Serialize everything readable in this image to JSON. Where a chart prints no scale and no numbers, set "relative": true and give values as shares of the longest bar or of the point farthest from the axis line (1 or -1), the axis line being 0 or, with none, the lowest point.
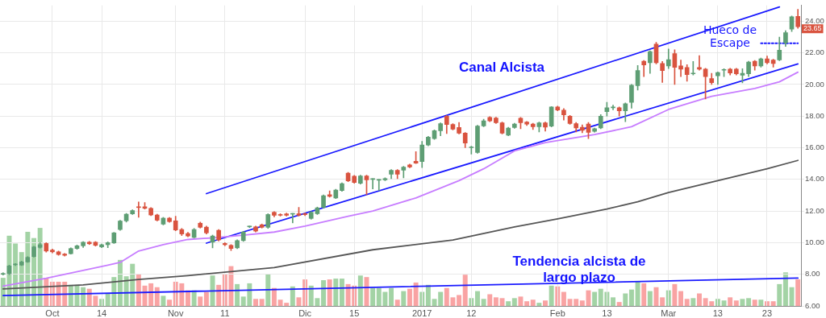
{
  "chart_data": [
    {
      "type": "candlestick",
      "categories": [
        null,
        null,
        null,
        null,
        null,
        null,
        null,
        null,
        "Oct",
        null,
        null,
        null,
        null,
        null,
        null,
        null,
        "14",
        null,
        null,
        null,
        null,
        null,
        null,
        null,
        null,
        null,
        null,
        null,
        "Nov",
        null,
        null,
        null,
        null,
        null,
        null,
        null,
        "11",
        null,
        null,
        null,
        null,
        null,
        null,
        null,
        null,
        null,
        null,
        null,
        null,
        "Dic",
        null,
        null,
        null,
        null,
        null,
        null,
        null,
        "15",
        null,
        null,
        null,
        null,
        null,
        null,
        null,
        null,
        null,
        null,
        "2017",
        null,
        null,
        null,
        null,
        null,
        null,
        null,
        "12",
        null,
        null,
        null,
        null,
        null,
        null,
        null,
        null,
        null,
        null,
        null,
        null,
        null,
        "Feb",
        null,
        null,
        null,
        null,
        null,
        null,
        null,
        "13",
        null,
        null,
        null,
        null,
        null,
        null,
        null,
        null,
        null,
        "Mar",
        null,
        null,
        null,
        null,
        null,
        null,
        null,
        "13",
        null,
        null,
        null,
        null,
        null,
        null,
        null,
        "23",
        null,
        null,
        null,
        null,
        null
      ],
      "ohlc": [
        [
          8.0,
          8.1,
          7.95,
          8.05
        ],
        [
          8.03,
          8.58,
          7.98,
          8.53
        ],
        [
          8.6,
          8.68,
          8.55,
          8.65
        ],
        [
          8.58,
          8.83,
          8.55,
          8.78
        ],
        [
          8.78,
          9.12,
          8.75,
          9.07
        ],
        [
          9.12,
          9.78,
          9.08,
          9.73
        ],
        [
          9.7,
          10.0,
          9.65,
          9.87
        ],
        [
          9.95,
          10.0,
          9.4,
          9.47
        ],
        [
          9.53,
          9.6,
          9.35,
          9.42
        ],
        [
          9.42,
          9.47,
          9.2,
          9.25
        ],
        [
          9.28,
          9.32,
          9.15,
          9.2
        ],
        [
          9.3,
          9.67,
          9.27,
          9.63
        ],
        [
          9.63,
          9.85,
          9.58,
          9.8
        ],
        [
          9.8,
          10.07,
          9.7,
          10.03
        ],
        [
          10.03,
          10.08,
          9.88,
          9.93
        ],
        [
          10.03,
          10.07,
          9.78,
          9.83
        ],
        [
          9.73,
          9.92,
          9.68,
          9.87
        ],
        [
          9.87,
          10.05,
          9.68,
          10.0
        ],
        [
          9.98,
          10.65,
          9.95,
          10.62
        ],
        [
          10.83,
          11.42,
          10.78,
          11.37
        ],
        [
          11.38,
          11.85,
          11.3,
          11.8
        ],
        [
          11.82,
          12.08,
          11.78,
          12.03
        ],
        [
          12.27,
          12.58,
          11.6,
          12.22
        ],
        [
          12.27,
          12.53,
          12.12,
          12.17
        ],
        [
          12.17,
          12.22,
          11.7,
          11.75
        ],
        [
          11.75,
          11.8,
          11.37,
          11.42
        ],
        [
          11.17,
          11.6,
          11.12,
          11.55
        ],
        [
          11.55,
          11.6,
          11.28,
          11.33
        ],
        [
          11.38,
          11.67,
          10.75,
          10.8
        ],
        [
          10.83,
          10.9,
          10.45,
          10.55
        ],
        [
          10.58,
          10.65,
          10.37,
          10.42
        ],
        [
          10.33,
          10.9,
          10.3,
          10.83
        ],
        [
          11.23,
          11.3,
          10.92,
          10.97
        ],
        [
          10.98,
          11.05,
          10.55,
          10.62
        ],
        [
          10.03,
          10.48,
          9.67,
          10.42
        ],
        [
          10.78,
          10.83,
          10.1,
          10.17
        ],
        [
          9.95,
          10.0,
          9.8,
          9.87
        ],
        [
          9.83,
          9.88,
          9.5,
          9.63
        ],
        [
          9.67,
          10.18,
          9.62,
          10.13
        ],
        [
          10.13,
          10.72,
          10.08,
          10.67
        ],
        [
          11.0,
          11.05,
          10.95,
          11.02
        ],
        [
          11.0,
          11.05,
          10.68,
          10.73
        ],
        [
          11.13,
          11.18,
          10.92,
          10.97
        ],
        [
          10.97,
          11.83,
          10.9,
          11.78
        ],
        [
          11.92,
          11.97,
          11.63,
          11.73
        ],
        [
          11.78,
          11.83,
          11.68,
          11.73
        ],
        [
          11.82,
          11.87,
          11.68,
          11.73
        ],
        [
          11.8,
          11.85,
          11.25,
          11.82
        ],
        [
          11.83,
          12.23,
          11.68,
          11.73
        ],
        [
          11.83,
          11.88,
          11.7,
          11.77
        ],
        [
          11.53,
          11.97,
          11.48,
          11.92
        ],
        [
          11.83,
          12.25,
          11.78,
          12.2
        ],
        [
          12.23,
          13.02,
          12.18,
          12.97
        ],
        [
          13.03,
          13.27,
          12.87,
          12.92
        ],
        [
          12.83,
          13.38,
          12.78,
          13.33
        ],
        [
          13.3,
          13.78,
          13.25,
          13.73
        ],
        [
          14.4,
          14.45,
          13.85,
          13.9
        ],
        [
          14.2,
          14.25,
          13.75,
          13.8
        ],
        [
          13.75,
          14.27,
          13.7,
          14.22
        ],
        [
          14.22,
          14.27,
          13.03,
          13.97
        ],
        [
          14.0,
          14.05,
          13.4,
          14.02
        ],
        [
          13.95,
          14.0,
          13.3,
          13.97
        ],
        [
          13.97,
          14.1,
          13.92,
          14.05
        ],
        [
          14.33,
          14.62,
          14.05,
          14.57
        ],
        [
          14.57,
          14.62,
          14.05,
          14.33
        ],
        [
          14.58,
          14.83,
          14.1,
          14.78
        ],
        [
          14.92,
          14.97,
          14.73,
          14.78
        ],
        [
          15.15,
          15.75,
          15.0,
          15.03
        ],
        [
          15.13,
          16.4,
          14.75,
          16.17
        ],
        [
          16.17,
          16.72,
          16.12,
          16.67
        ],
        [
          16.58,
          17.13,
          16.53,
          17.08
        ],
        [
          17.07,
          17.58,
          16.75,
          17.53
        ],
        [
          18.0,
          18.05,
          16.9,
          17.47
        ],
        [
          17.47,
          17.52,
          17.12,
          17.17
        ],
        [
          17.28,
          17.6,
          16.87,
          16.92
        ],
        [
          16.92,
          16.97,
          16.0,
          16.3
        ],
        [
          16.0,
          16.1,
          15.6,
          16.02
        ],
        [
          15.7,
          17.42,
          15.65,
          17.37
        ],
        [
          17.38,
          17.8,
          17.33,
          17.7
        ],
        [
          17.92,
          17.97,
          17.65,
          17.7
        ],
        [
          17.88,
          17.93,
          17.53,
          17.58
        ],
        [
          17.57,
          17.62,
          16.87,
          16.92
        ],
        [
          16.8,
          17.3,
          16.75,
          17.25
        ],
        [
          17.28,
          17.55,
          17.23,
          17.5
        ],
        [
          17.87,
          17.92,
          17.2,
          17.58
        ],
        [
          17.62,
          17.67,
          17.4,
          17.5
        ],
        [
          17.5,
          17.55,
          17.15,
          17.33
        ],
        [
          17.33,
          17.63,
          17.0,
          17.58
        ],
        [
          17.58,
          17.63,
          17.05,
          17.3
        ],
        [
          17.37,
          18.6,
          17.32,
          18.58
        ],
        [
          18.58,
          18.63,
          18.33,
          18.38
        ],
        [
          18.38,
          18.48,
          17.75,
          18.08
        ],
        [
          18.0,
          18.05,
          17.48,
          17.53
        ],
        [
          17.53,
          17.6,
          17.0,
          17.25
        ],
        [
          17.3,
          17.45,
          16.95,
          17.1
        ],
        [
          17.5,
          17.6,
          16.58,
          16.97
        ],
        [
          17.03,
          17.25,
          16.98,
          17.2
        ],
        [
          17.25,
          18.1,
          17.2,
          18.0
        ],
        [
          18.28,
          18.87,
          18.0,
          18.53
        ],
        [
          18.53,
          18.7,
          18.4,
          18.55
        ],
        [
          18.53,
          18.58,
          18.0,
          18.33
        ],
        [
          18.33,
          18.83,
          17.65,
          18.78
        ],
        [
          18.87,
          20.0,
          18.5,
          19.95
        ],
        [
          19.92,
          21.2,
          19.65,
          20.88
        ],
        [
          21.47,
          21.52,
          20.5,
          21.23
        ],
        [
          21.37,
          22.13,
          20.7,
          22.08
        ],
        [
          22.55,
          22.67,
          21.3,
          21.38
        ],
        [
          21.33,
          21.45,
          20.13,
          20.88
        ],
        [
          21.17,
          22.25,
          21.0,
          21.57
        ],
        [
          21.95,
          22.2,
          20.0,
          21.08
        ],
        [
          21.17,
          21.55,
          20.5,
          20.97
        ],
        [
          21.08,
          21.25,
          20.2,
          20.63
        ],
        [
          20.67,
          21.45,
          20.6,
          20.68
        ],
        [
          21.08,
          21.83,
          20.9,
          20.97
        ],
        [
          20.97,
          21.02,
          19.08,
          20.5
        ],
        [
          20.37,
          20.7,
          20.0,
          20.12
        ],
        [
          20.55,
          20.8,
          20.0,
          20.75
        ],
        [
          20.9,
          21.0,
          20.5,
          20.95
        ],
        [
          20.97,
          21.02,
          20.6,
          20.72
        ],
        [
          20.97,
          21.02,
          20.6,
          20.67
        ],
        [
          20.58,
          21.0,
          20.1,
          20.7
        ],
        [
          20.67,
          21.47,
          20.5,
          21.42
        ],
        [
          21.47,
          21.52,
          20.9,
          21.17
        ],
        [
          21.17,
          21.67,
          21.1,
          21.62
        ],
        [
          21.62,
          21.8,
          21.3,
          21.37
        ],
        [
          21.55,
          21.6,
          21.1,
          21.33
        ],
        [
          21.55,
          23.0,
          21.5,
          22.17
        ],
        [
          22.62,
          23.4,
          22.4,
          23.28
        ],
        [
          23.5,
          24.33,
          23.35,
          24.28
        ],
        [
          24.3,
          24.75,
          23.55,
          23.65
        ]
      ],
      "colors": [
        "#5e9e74",
        "#5e9e74",
        "#5e9e74",
        "#5e9e74",
        "#5e9e74",
        "#5e9e74",
        "#5e9e74",
        "#d9533f",
        "#d9533f",
        "#d9533f",
        "#d9533f",
        "#5e9e74",
        "#5e9e74",
        "#5e9e74",
        "#d9533f",
        "#d9533f",
        "#5e9e74",
        "#5e9e74",
        "#5e9e74",
        "#5e9e74",
        "#5e9e74",
        "#5e9e74",
        "#d9533f",
        "#d9533f",
        "#d9533f",
        "#d9533f",
        "#5e9e74",
        "#d9533f",
        "#d9533f",
        "#d9533f",
        "#d9533f",
        "#5e9e74",
        "#d9533f",
        "#d9533f",
        "#5e9e74",
        "#d9533f",
        "#d9533f",
        "#d9533f",
        "#5e9e74",
        "#5e9e74",
        "#5e9e74",
        "#d9533f",
        "#d9533f",
        "#5e9e74",
        "#d9533f",
        "#d9533f",
        "#d9533f",
        "#5e9e74",
        "#d9533f",
        "#d9533f",
        "#5e9e74",
        "#5e9e74",
        "#5e9e74",
        "#d9533f",
        "#5e9e74",
        "#5e9e74",
        "#d9533f",
        "#d9533f",
        "#5e9e74",
        "#d9533f",
        "#5e9e74",
        "#5e9e74",
        "#5e9e74",
        "#5e9e74",
        "#d9533f",
        "#5e9e74",
        "#d9533f",
        "#d9533f",
        "#5e9e74",
        "#5e9e74",
        "#5e9e74",
        "#5e9e74",
        "#d9533f",
        "#d9533f",
        "#d9533f",
        "#d9533f",
        "#5e9e74",
        "#5e9e74",
        "#5e9e74",
        "#d9533f",
        "#d9533f",
        "#d9533f",
        "#5e9e74",
        "#5e9e74",
        "#d9533f",
        "#d9533f",
        "#d9533f",
        "#5e9e74",
        "#d9533f",
        "#5e9e74",
        "#d9533f",
        "#d9533f",
        "#d9533f",
        "#d9533f",
        "#d9533f",
        "#d9533f",
        "#5e9e74",
        "#5e9e74",
        "#5e9e74",
        "#5e9e74",
        "#d9533f",
        "#5e9e74",
        "#5e9e74",
        "#5e9e74",
        "#d9533f",
        "#5e9e74",
        "#d9533f",
        "#d9533f",
        "#5e9e74",
        "#d9533f",
        "#d9533f",
        "#d9533f",
        "#5e9e74",
        "#d9533f",
        "#d9533f",
        "#d9533f",
        "#5e9e74",
        "#5e9e74",
        "#d9533f",
        "#d9533f",
        "#5e9e74",
        "#5e9e74",
        "#d9533f",
        "#5e9e74",
        "#d9533f",
        "#d9533f",
        "#5e9e74",
        "#5e9e74",
        "#5e9e74",
        "#d9533f"
      ],
      "series": [
        {
          "type": "line",
          "color": "#c77dff",
          "values": [
            7.25,
            null,
            null,
            null,
            null,
            null,
            null,
            7.75,
            null,
            null,
            null,
            null,
            null,
            null,
            null,
            null,
            null,
            8.58,
            null,
            8.75,
            null,
            null,
            9.47,
            null,
            null,
            null,
            9.87,
            null,
            null,
            null,
            10.2,
            null,
            null,
            null,
            null,
            10.33,
            null,
            null,
            null,
            10.47,
            null,
            null,
            null,
            null,
            10.67,
            null,
            null,
            null,
            null,
            11.05,
            null,
            null,
            null,
            null,
            null,
            null,
            11.67,
            null,
            null,
            null,
            12.0,
            null,
            null,
            null,
            null,
            null,
            null,
            12.83,
            null,
            null,
            null,
            null,
            null,
            null,
            13.92,
            null,
            null,
            null,
            14.67,
            null,
            null,
            null,
            null,
            15.8,
            null,
            null,
            null,
            null,
            16.33,
            null,
            null,
            null,
            null,
            null,
            null,
            null,
            16.83,
            null,
            null,
            null,
            null,
            null,
            17.33,
            null,
            null,
            null,
            null,
            null,
            18.42,
            null,
            null,
            null,
            null,
            null,
            null,
            19.25,
            null,
            null,
            null,
            null,
            null,
            null,
            19.75,
            null,
            null,
            null,
            20.17,
            null,
            null,
            20.78
          ]
        },
        {
          "type": "line",
          "color": "#555555",
          "values": [
            7.08,
            null,
            null,
            null,
            null,
            null,
            null,
            null,
            null,
            null,
            null,
            null,
            null,
            7.33,
            null,
            null,
            null,
            null,
            null,
            null,
            null,
            null,
            7.67,
            null,
            null,
            null,
            null,
            null,
            null,
            null,
            7.92,
            null,
            null,
            null,
            null,
            null,
            null,
            null,
            null,
            null,
            null,
            null,
            null,
            null,
            8.42,
            null,
            null,
            null,
            null,
            null,
            null,
            null,
            null,
            null,
            null,
            null,
            null,
            null,
            null,
            null,
            9.55,
            null,
            null,
            null,
            null,
            null,
            null,
            null,
            null,
            null,
            null,
            null,
            null,
            10.17,
            null,
            null,
            null,
            null,
            null,
            null,
            null,
            null,
            null,
            11.0,
            null,
            null,
            null,
            null,
            null,
            null,
            11.5,
            null,
            null,
            null,
            null,
            null,
            null,
            null,
            12.13,
            null,
            null,
            null,
            null,
            12.58,
            null,
            null,
            null,
            null,
            13.17,
            null,
            null,
            null,
            null,
            null,
            null,
            null,
            13.92,
            null,
            null,
            null,
            null,
            null,
            null,
            null,
            14.67,
            null,
            null,
            null,
            null,
            15.2
          ]
        },
        {
          "type": "line",
          "color": "#1a1aff",
          "values": [
            null,
            null,
            null,
            null,
            null,
            null,
            null,
            null,
            null,
            null,
            null,
            null,
            null,
            null,
            null,
            null,
            null,
            null,
            null,
            null,
            null,
            null,
            null,
            null,
            null,
            null,
            null,
            null,
            null,
            null,
            null,
            null,
            null,
            13.1,
            null,
            null,
            null,
            null,
            null,
            null,
            null,
            null,
            null,
            null,
            null,
            null,
            null,
            null,
            null,
            null,
            null,
            null,
            null,
            null,
            null,
            null,
            null,
            null,
            null,
            null,
            null,
            null,
            null,
            null,
            null,
            null,
            null,
            null,
            null,
            null,
            null,
            null,
            null,
            null,
            null,
            null,
            null,
            null,
            null,
            null,
            null,
            null,
            null,
            null,
            null,
            null,
            null,
            null,
            null,
            null,
            null,
            null,
            null,
            null,
            null,
            null,
            null,
            null,
            null,
            null,
            null,
            null,
            null,
            null,
            null,
            null,
            null,
            null,
            null,
            null,
            null,
            null,
            null,
            null,
            null,
            null,
            null,
            null,
            null,
            null,
            null,
            null,
            null,
            null,
            null,
            null,
            24.9,
            null,
            null,
            null
          ]
        },
        {
          "type": "line",
          "color": "#1a1aff",
          "values": [
            null,
            null,
            null,
            null,
            null,
            null,
            null,
            null,
            null,
            null,
            null,
            null,
            null,
            null,
            null,
            null,
            null,
            null,
            null,
            null,
            null,
            null,
            null,
            null,
            null,
            null,
            null,
            null,
            null,
            null,
            null,
            null,
            null,
            9.97,
            null,
            null,
            null,
            null,
            null,
            null,
            null,
            null,
            null,
            null,
            null,
            null,
            null,
            null,
            null,
            null,
            null,
            null,
            null,
            null,
            null,
            null,
            null,
            null,
            null,
            null,
            null,
            null,
            null,
            null,
            null,
            null,
            null,
            null,
            null,
            null,
            null,
            null,
            null,
            null,
            null,
            null,
            null,
            null,
            null,
            null,
            null,
            null,
            null,
            null,
            null,
            null,
            null,
            null,
            null,
            null,
            null,
            null,
            null,
            null,
            null,
            null,
            null,
            null,
            null,
            null,
            null,
            null,
            null,
            null,
            null,
            null,
            null,
            null,
            null,
            null,
            null,
            null,
            null,
            null,
            null,
            null,
            null,
            null,
            null,
            null,
            null,
            null,
            null,
            null,
            null,
            null,
            null,
            null,
            null,
            21.3
          ]
        },
        {
          "type": "line",
          "color": "#1a1aff",
          "values": [
            6.66,
            null,
            null,
            null,
            null,
            null,
            null,
            null,
            null,
            null,
            null,
            null,
            null,
            null,
            null,
            null,
            null,
            null,
            null,
            null,
            null,
            null,
            null,
            null,
            null,
            null,
            null,
            null,
            null,
            null,
            null,
            null,
            null,
            null,
            null,
            null,
            null,
            null,
            null,
            null,
            null,
            null,
            null,
            null,
            null,
            null,
            null,
            null,
            null,
            null,
            null,
            null,
            null,
            null,
            null,
            null,
            null,
            null,
            null,
            null,
            null,
            null,
            null,
            null,
            null,
            null,
            null,
            null,
            null,
            null,
            null,
            null,
            null,
            null,
            null,
            null,
            null,
            null,
            null,
            null,
            null,
            null,
            null,
            null,
            null,
            null,
            null,
            null,
            null,
            null,
            null,
            null,
            null,
            null,
            null,
            null,
            null,
            null,
            null,
            null,
            null,
            null,
            null,
            null,
            null,
            null,
            null,
            null,
            null,
            null,
            null,
            null,
            null,
            null,
            null,
            null,
            null,
            null,
            null,
            null,
            null,
            null,
            null,
            null,
            null,
            null,
            null,
            null,
            null,
            7.76
          ]
        },
        {
          "type": "line",
          "color": "#1a1aff",
          "line_style": "dotted",
          "values": [
            null,
            null,
            null,
            null,
            null,
            null,
            null,
            null,
            null,
            null,
            null,
            null,
            null,
            null,
            null,
            null,
            null,
            null,
            null,
            null,
            null,
            null,
            null,
            null,
            null,
            null,
            null,
            null,
            null,
            null,
            null,
            null,
            null,
            null,
            null,
            null,
            null,
            null,
            null,
            null,
            null,
            null,
            null,
            null,
            null,
            null,
            null,
            null,
            null,
            null,
            null,
            null,
            null,
            null,
            null,
            null,
            null,
            null,
            null,
            null,
            null,
            null,
            null,
            null,
            null,
            null,
            null,
            null,
            null,
            null,
            null,
            null,
            null,
            null,
            null,
            null,
            null,
            null,
            null,
            null,
            null,
            null,
            null,
            null,
            null,
            null,
            null,
            null,
            null,
            null,
            null,
            null,
            null,
            null,
            null,
            null,
            null,
            null,
            null,
            null,
            null,
            null,
            null,
            null,
            null,
            null,
            null,
            null,
            null,
            null,
            null,
            null,
            null,
            null,
            null,
            null,
            null,
            null,
            null,
            null,
            null,
            null,
            null,
            22.6,
            null,
            null,
            null,
            null,
            null,
            22.6
          ]
        }
      ],
      "ylim": [
        6,
        25
      ],
      "yticks": [
        {
          "value": 6,
          "label": "6.00"
        },
        {
          "value": 8,
          "label": "8.00"
        },
        {
          "value": 10,
          "label": "10.00"
        },
        {
          "value": 12,
          "label": "12.00"
        },
        {
          "value": 14,
          "label": "14.00"
        },
        {
          "value": 16,
          "label": "16.00"
        },
        {
          "value": 18,
          "label": "18.00"
        },
        {
          "value": 20,
          "label": "20.00"
        },
        {
          "value": 22,
          "label": "22.00"
        },
        {
          "value": 24,
          "label": "24.00"
        }
      ],
      "grid": true,
      "marker": "none",
      "annotations": [
        "Canal Alcista",
        "Hueco de Escape",
        "Tendencia alcista de largo plazo",
        "23.65"
      ]
    },
    {
      "type": "bar",
      "relative": true,
      "categories": [
        null,
        null,
        null,
        null,
        null,
        null,
        null,
        null,
        null,
        null,
        null,
        null,
        null,
        null,
        null,
        null,
        null,
        null,
        null,
        null,
        null,
        null,
        null,
        null,
        null,
        null,
        null,
        null,
        null,
        null,
        null,
        null,
        null,
        null,
        null,
        null,
        null,
        null,
        null,
        null,
        null,
        null,
        null,
        null,
        null,
        null,
        null,
        null,
        null,
        null,
        null,
        null,
        null,
        null,
        null,
        null,
        null,
        null,
        null,
        null,
        null,
        null,
        null,
        null,
        null,
        null,
        null,
        null,
        null,
        null,
        null,
        null,
        null,
        null,
        null,
        null,
        null,
        null,
        null,
        null,
        null,
        null,
        null,
        null,
        null,
        null,
        null,
        null,
        null,
        null,
        null,
        null,
        null,
        null,
        null,
        null,
        null,
        null,
        null,
        null,
        null,
        null,
        null,
        null,
        null,
        null,
        null,
        null,
        null,
        null,
        null,
        null,
        null,
        null,
        null,
        null,
        null,
        null,
        null,
        null,
        null,
        null,
        null,
        null,
        null,
        null,
        null,
        null,
        null,
        null
      ],
      "values": [
        0.36,
        0.9,
        0.8,
        0.69,
        0.95,
        0.87,
        1,
        0.36,
        0.31,
        0.31,
        0.31,
        0.27,
        0.27,
        0.24,
        0.22,
        0.13,
        0.09,
        0.16,
        0.37,
        0.59,
        0.38,
        0.54,
        0.41,
        0.26,
        0.29,
        0.24,
        0.13,
        0.08,
        0.31,
        0.29,
        0.2,
        0.2,
        0.12,
        0.18,
        0.39,
        0.27,
        0.41,
        0.51,
        0.28,
        0.12,
        0.29,
        0.09,
        0.09,
        0.41,
        0.23,
        0.08,
        0.04,
        0.25,
        0.11,
        0.34,
        0.26,
        0.1,
        0.33,
        0.34,
        0.35,
        0.35,
        0.28,
        0.26,
        0.39,
        0.37,
        0.23,
        0.23,
        0.18,
        0.23,
        0.08,
        0.19,
        0.22,
        0.3,
        0.18,
        0.27,
        0.09,
        0.18,
        0.23,
        0.11,
        0.14,
        0.4,
        0.1,
        0.19,
        0.09,
        0.15,
        0.11,
        0.1,
        0.06,
        0.1,
        0.12,
        0.06,
        0.08,
        0.04,
        0.07,
        0.26,
        0.25,
        0.18,
        0.09,
        0.09,
        0.07,
        0.2,
        0.18,
        0.22,
        0.18,
        0.11,
        0.05,
        0.16,
        0.21,
        0.32,
        0.29,
        0.19,
        0.24,
        0.11,
        0.2,
        0.28,
        0.19,
        0.09,
        0.1,
        0.16,
        0.1,
        0.06,
        0.09,
        0.07,
        0.11,
        0.07,
        0.09,
        0.1,
        0.08,
        0.08,
        0.06,
        0.06,
        0.28,
        0.43,
        0.24,
        0.34
      ],
      "colors": [
        "#a3d3a5",
        "#a3d3a5",
        "#a3d3a5",
        "#a3d3a5",
        "#a3d3a5",
        "#a3d3a5",
        "#a3d3a5",
        "#f9a3a3",
        "#f9a3a3",
        "#f9a3a3",
        "#f9a3a3",
        "#a3d3a5",
        "#a3d3a5",
        "#a3d3a5",
        "#f9a3a3",
        "#f9a3a3",
        "#a3d3a5",
        "#a3d3a5",
        "#a3d3a5",
        "#a3d3a5",
        "#a3d3a5",
        "#a3d3a5",
        "#f9a3a3",
        "#f9a3a3",
        "#f9a3a3",
        "#f9a3a3",
        "#a3d3a5",
        "#f9a3a3",
        "#f9a3a3",
        "#f9a3a3",
        "#f9a3a3",
        "#a3d3a5",
        "#f9a3a3",
        "#f9a3a3",
        "#a3d3a5",
        "#f9a3a3",
        "#f9a3a3",
        "#f9a3a3",
        "#a3d3a5",
        "#a3d3a5",
        "#a3d3a5",
        "#f9a3a3",
        "#f9a3a3",
        "#a3d3a5",
        "#f9a3a3",
        "#f9a3a3",
        "#f9a3a3",
        "#a3d3a5",
        "#f9a3a3",
        "#f9a3a3",
        "#a3d3a5",
        "#a3d3a5",
        "#a3d3a5",
        "#f9a3a3",
        "#a3d3a5",
        "#a3d3a5",
        "#f9a3a3",
        "#f9a3a3",
        "#a3d3a5",
        "#f9a3a3",
        "#a3d3a5",
        "#a3d3a5",
        "#a3d3a5",
        "#a3d3a5",
        "#f9a3a3",
        "#a3d3a5",
        "#f9a3a3",
        "#f9a3a3",
        "#a3d3a5",
        "#a3d3a5",
        "#a3d3a5",
        "#a3d3a5",
        "#f9a3a3",
        "#f9a3a3",
        "#f9a3a3",
        "#f9a3a3",
        "#a3d3a5",
        "#a3d3a5",
        "#a3d3a5",
        "#f9a3a3",
        "#f9a3a3",
        "#f9a3a3",
        "#a3d3a5",
        "#a3d3a5",
        "#f9a3a3",
        "#f9a3a3",
        "#f9a3a3",
        "#a3d3a5",
        "#f9a3a3",
        "#a3d3a5",
        "#f9a3a3",
        "#f9a3a3",
        "#f9a3a3",
        "#f9a3a3",
        "#f9a3a3",
        "#f9a3a3",
        "#a3d3a5",
        "#a3d3a5",
        "#a3d3a5",
        "#a3d3a5",
        "#f9a3a3",
        "#a3d3a5",
        "#a3d3a5",
        "#a3d3a5",
        "#f9a3a3",
        "#a3d3a5",
        "#f9a3a3",
        "#f9a3a3",
        "#a3d3a5",
        "#f9a3a3",
        "#f9a3a3",
        "#f9a3a3",
        "#a3d3a5",
        "#f9a3a3",
        "#f9a3a3",
        "#f9a3a3",
        "#a3d3a5",
        "#a3d3a5",
        "#f9a3a3",
        "#f9a3a3",
        "#a3d3a5",
        "#a3d3a5",
        "#f9a3a3",
        "#a3d3a5",
        "#f9a3a3",
        "#f9a3a3",
        "#a3d3a5",
        "#a3d3a5",
        "#a3d3a5",
        "#f9a3a3"
      ]
    }
  ]
}
